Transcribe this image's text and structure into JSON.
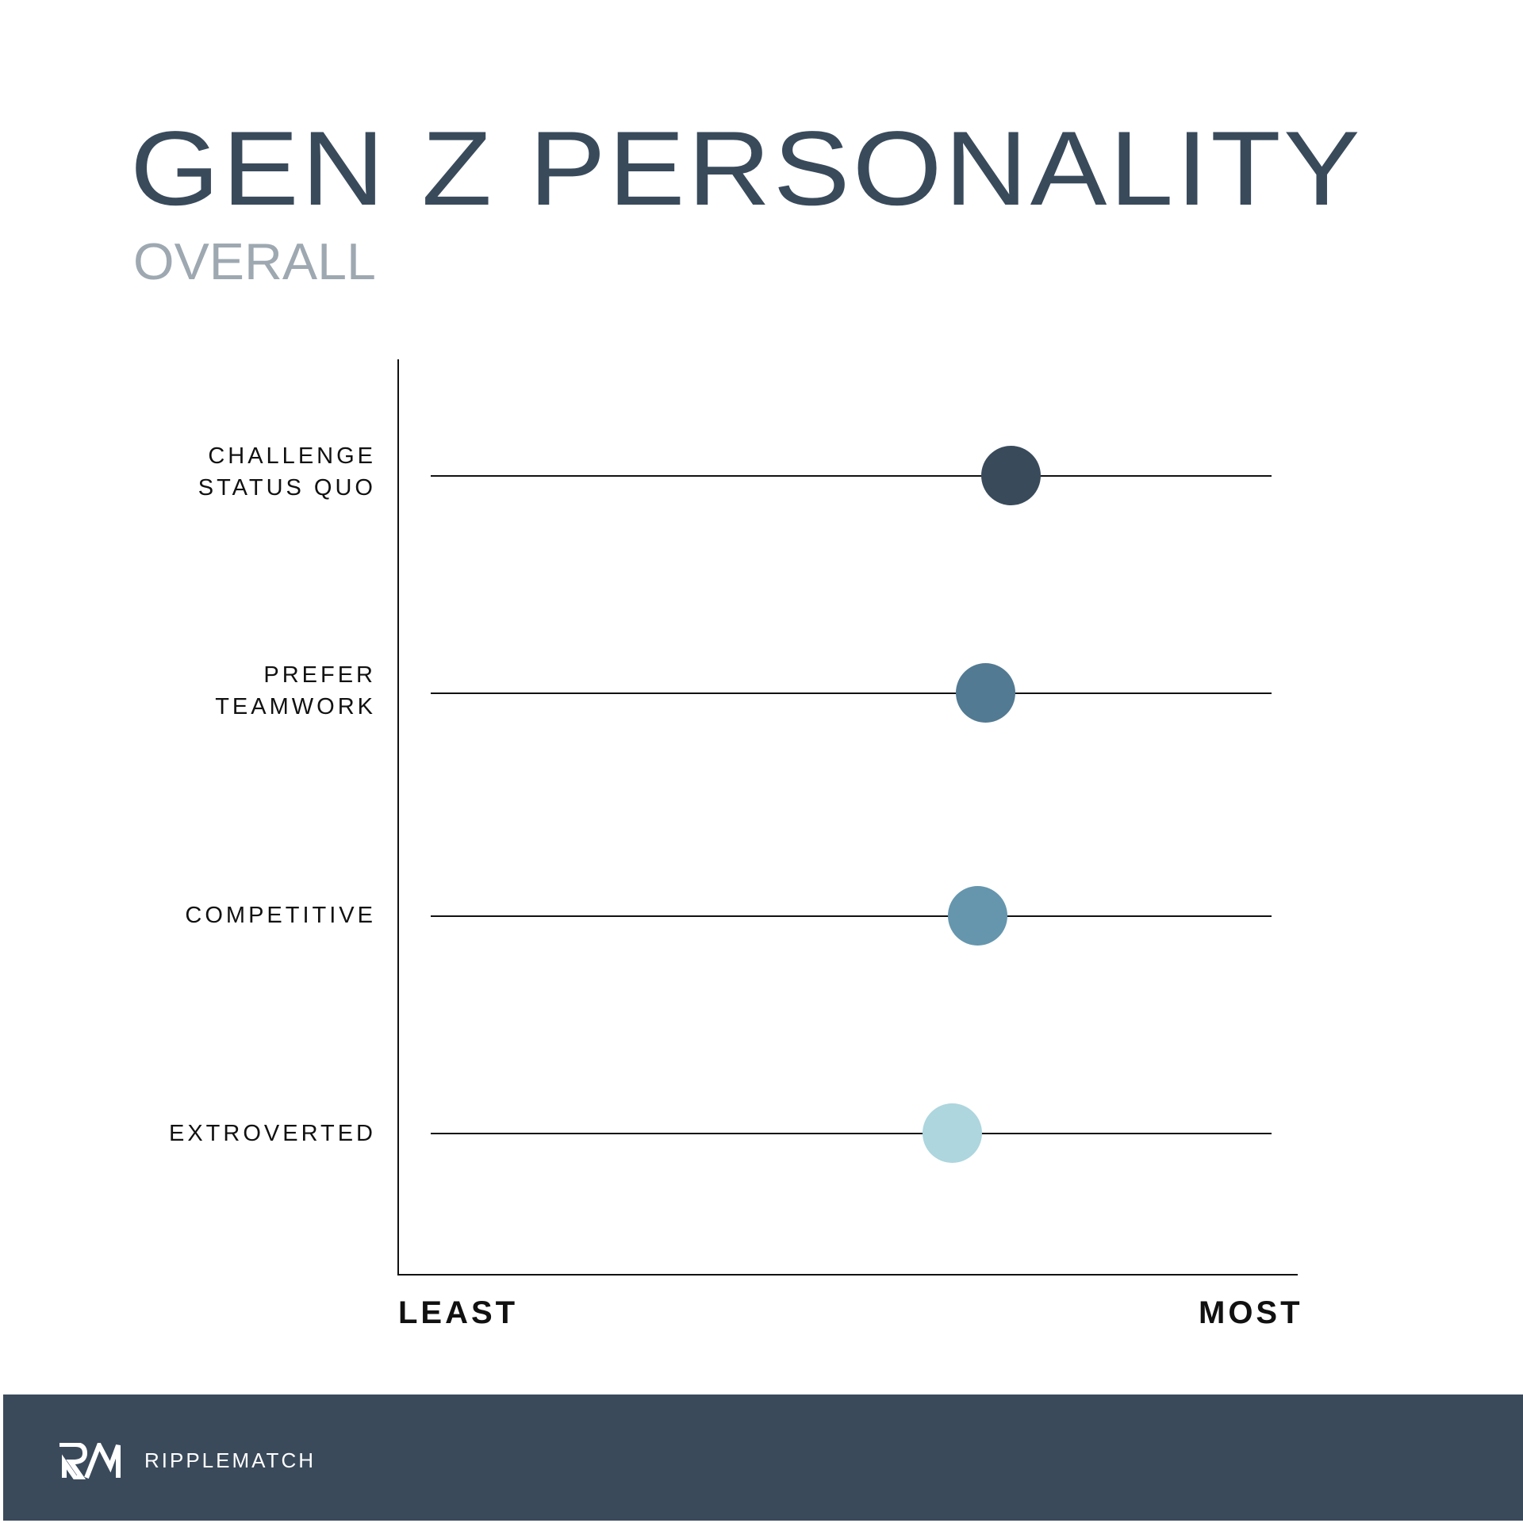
{
  "header": {
    "title": "GEN Z PERSONALITY",
    "subtitle": "OVERALL"
  },
  "chart_data": {
    "type": "scatter",
    "title": "GEN Z PERSONALITY",
    "subtitle": "OVERALL",
    "xlabel": "",
    "ylabel": "",
    "x_axis_endpoints": {
      "min_label": "LEAST",
      "max_label": "MOST"
    },
    "xlim": [
      0,
      100
    ],
    "grid": false,
    "legend": null,
    "categories": [
      "CHALLENGE STATUS QUO",
      "PREFER TEAMWORK",
      "COMPETITIVE",
      "EXTROVERTED"
    ],
    "values": [
      69,
      66,
      65,
      62
    ],
    "points": [
      {
        "label": "CHALLENGE\nSTATUS QUO",
        "value": 69,
        "color": "#394a5b"
      },
      {
        "label": "PREFER\nTEAMWORK",
        "value": 66,
        "color": "#527a92"
      },
      {
        "label": "COMPETITIVE",
        "value": 65,
        "color": "#6596ae"
      },
      {
        "label": "EXTROVERTED",
        "value": 62,
        "color": "#add6de"
      }
    ]
  },
  "axis": {
    "least_label": "LEAST",
    "most_label": "MOST"
  },
  "footer": {
    "logo_icon": "rm-monogram-icon",
    "brand": "RIPPLEMATCH",
    "background": "#3a4a5b"
  }
}
